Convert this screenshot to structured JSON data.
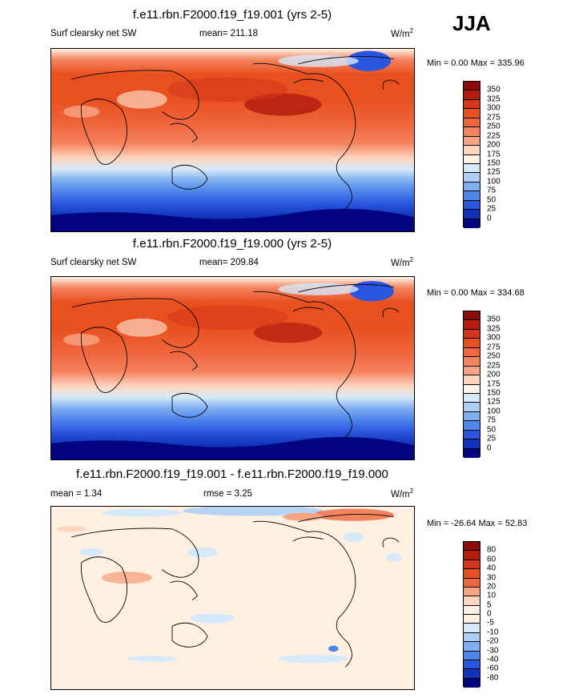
{
  "season": "JJA",
  "units": "W/m",
  "units_exp": "2",
  "panels": [
    {
      "title": "f.e11.rbn.F2000.f19_f19.001 (yrs 2-5)",
      "left_label": "Surf clearsky net SW",
      "mean_label": "mean= 211.18",
      "minmax": "Min =   0.00 Max = 335.96",
      "colorbar_labels": [
        "350",
        "325",
        "300",
        "275",
        "250",
        "225",
        "200",
        "175",
        "150",
        "125",
        "100",
        "75",
        "50",
        "25",
        "0"
      ]
    },
    {
      "title": "f.e11.rbn.F2000.f19_f19.000 (yrs 2-5)",
      "left_label": "Surf clearsky net SW",
      "mean_label": "mean= 209.84",
      "minmax": "Min =   0.00 Max = 334.68",
      "colorbar_labels": [
        "350",
        "325",
        "300",
        "275",
        "250",
        "225",
        "200",
        "175",
        "150",
        "125",
        "100",
        "75",
        "50",
        "25",
        "0"
      ]
    },
    {
      "title": "f.e11.rbn.F2000.f19_f19.001 - f.e11.rbn.F2000.f19_f19.000",
      "left_label": "mean =   1.34",
      "mean_label": "rmse =   3.25",
      "minmax": "Min = -26.64 Max =  52.83",
      "colorbar_labels": [
        "80",
        "60",
        "40",
        "30",
        "20",
        "10",
        "5",
        "0",
        "-5",
        "-10",
        "-20",
        "-30",
        "-40",
        "-60",
        "-80"
      ]
    }
  ],
  "colors": {
    "abs_scale": [
      "#8b0a0a",
      "#b31d0f",
      "#d3361a",
      "#e8501f",
      "#f0673e",
      "#f4835f",
      "#f8a585",
      "#fdd6c0",
      "#fff3e8",
      "#d6e9fa",
      "#aecff5",
      "#7eaff0",
      "#4e86ea",
      "#2a55de",
      "#1133b9",
      "#03047f"
    ],
    "diff_scale": [
      "#8b0a0a",
      "#b31d0f",
      "#d3361a",
      "#e8501f",
      "#f0673e",
      "#f8a585",
      "#fdd6c0",
      "#fff0e2",
      "#fff0e2",
      "#d6e9fa",
      "#aecff5",
      "#7eaff0",
      "#4e86ea",
      "#2a55de",
      "#1133b9",
      "#03047f"
    ]
  }
}
